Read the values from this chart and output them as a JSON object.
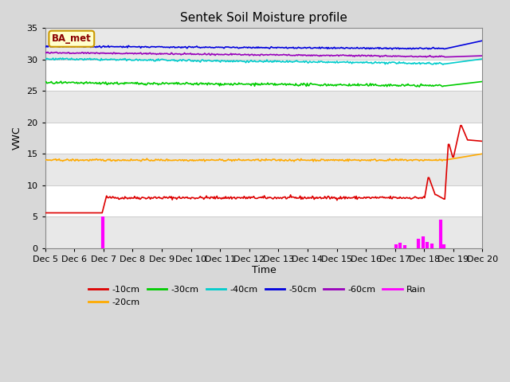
{
  "title": "Sentek Soil Moisture profile",
  "xlabel": "Time",
  "ylabel": "VWC",
  "xlim": [
    0,
    15
  ],
  "ylim": [
    0,
    35
  ],
  "yticks": [
    0,
    5,
    10,
    15,
    20,
    25,
    30,
    35
  ],
  "xtick_labels": [
    "Dec 5",
    "Dec 6",
    "Dec 7",
    "Dec 8",
    "Dec 9",
    "Dec 10",
    "Dec 11",
    "Dec 12",
    "Dec 13",
    "Dec 14",
    "Dec 15",
    "Dec 16",
    "Dec 17",
    "Dec 18",
    "Dec 19",
    "Dec 20"
  ],
  "fig_bg_color": "#d8d8d8",
  "plot_bg_color": "#ffffff",
  "band_color": "#e8e8e8",
  "label_tag": "BA_met",
  "label_tag_bg": "#ffffcc",
  "label_tag_edge": "#cc9900",
  "label_tag_text_color": "#8b0000",
  "series": {
    "10cm": {
      "color": "#dd0000",
      "label": "-10cm"
    },
    "20cm": {
      "color": "#ffaa00",
      "label": "-20cm"
    },
    "30cm": {
      "color": "#00cc00",
      "label": "-30cm"
    },
    "40cm": {
      "color": "#00cccc",
      "label": "-40cm"
    },
    "50cm": {
      "color": "#0000dd",
      "label": "-50cm"
    },
    "60cm": {
      "color": "#9900bb",
      "label": "-60cm"
    },
    "rain": {
      "color": "#ff00ff",
      "label": "Rain"
    }
  },
  "n_points": 500,
  "title_fontsize": 11,
  "axis_label_fontsize": 9,
  "tick_fontsize": 8,
  "legend_fontsize": 8
}
